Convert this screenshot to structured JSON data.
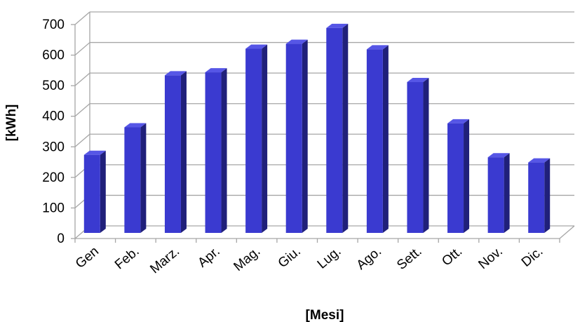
{
  "chart_data": {
    "type": "bar",
    "style": "3d-column",
    "categories": [
      "Gen",
      "Feb.",
      "Marz.",
      "Apr.",
      "Mag.",
      "Giu.",
      "Lug.",
      "Ago.",
      "Sett.",
      "Ott.",
      "Nov.",
      "Dic."
    ],
    "values": [
      260,
      350,
      520,
      530,
      607,
      623,
      675,
      605,
      498,
      363,
      252,
      235
    ],
    "xlabel": "[Mesi]",
    "ylabel": "[kWh]",
    "ylim": [
      0,
      700
    ],
    "yticks": [
      "0",
      "100",
      "200",
      "300",
      "400",
      "500",
      "600",
      "700"
    ],
    "grid": true,
    "colors": {
      "bar_front": "#3a3ad0",
      "bar_side": "#20207a",
      "bar_top": "#5656e6",
      "grid": "#a6a6a6"
    }
  }
}
